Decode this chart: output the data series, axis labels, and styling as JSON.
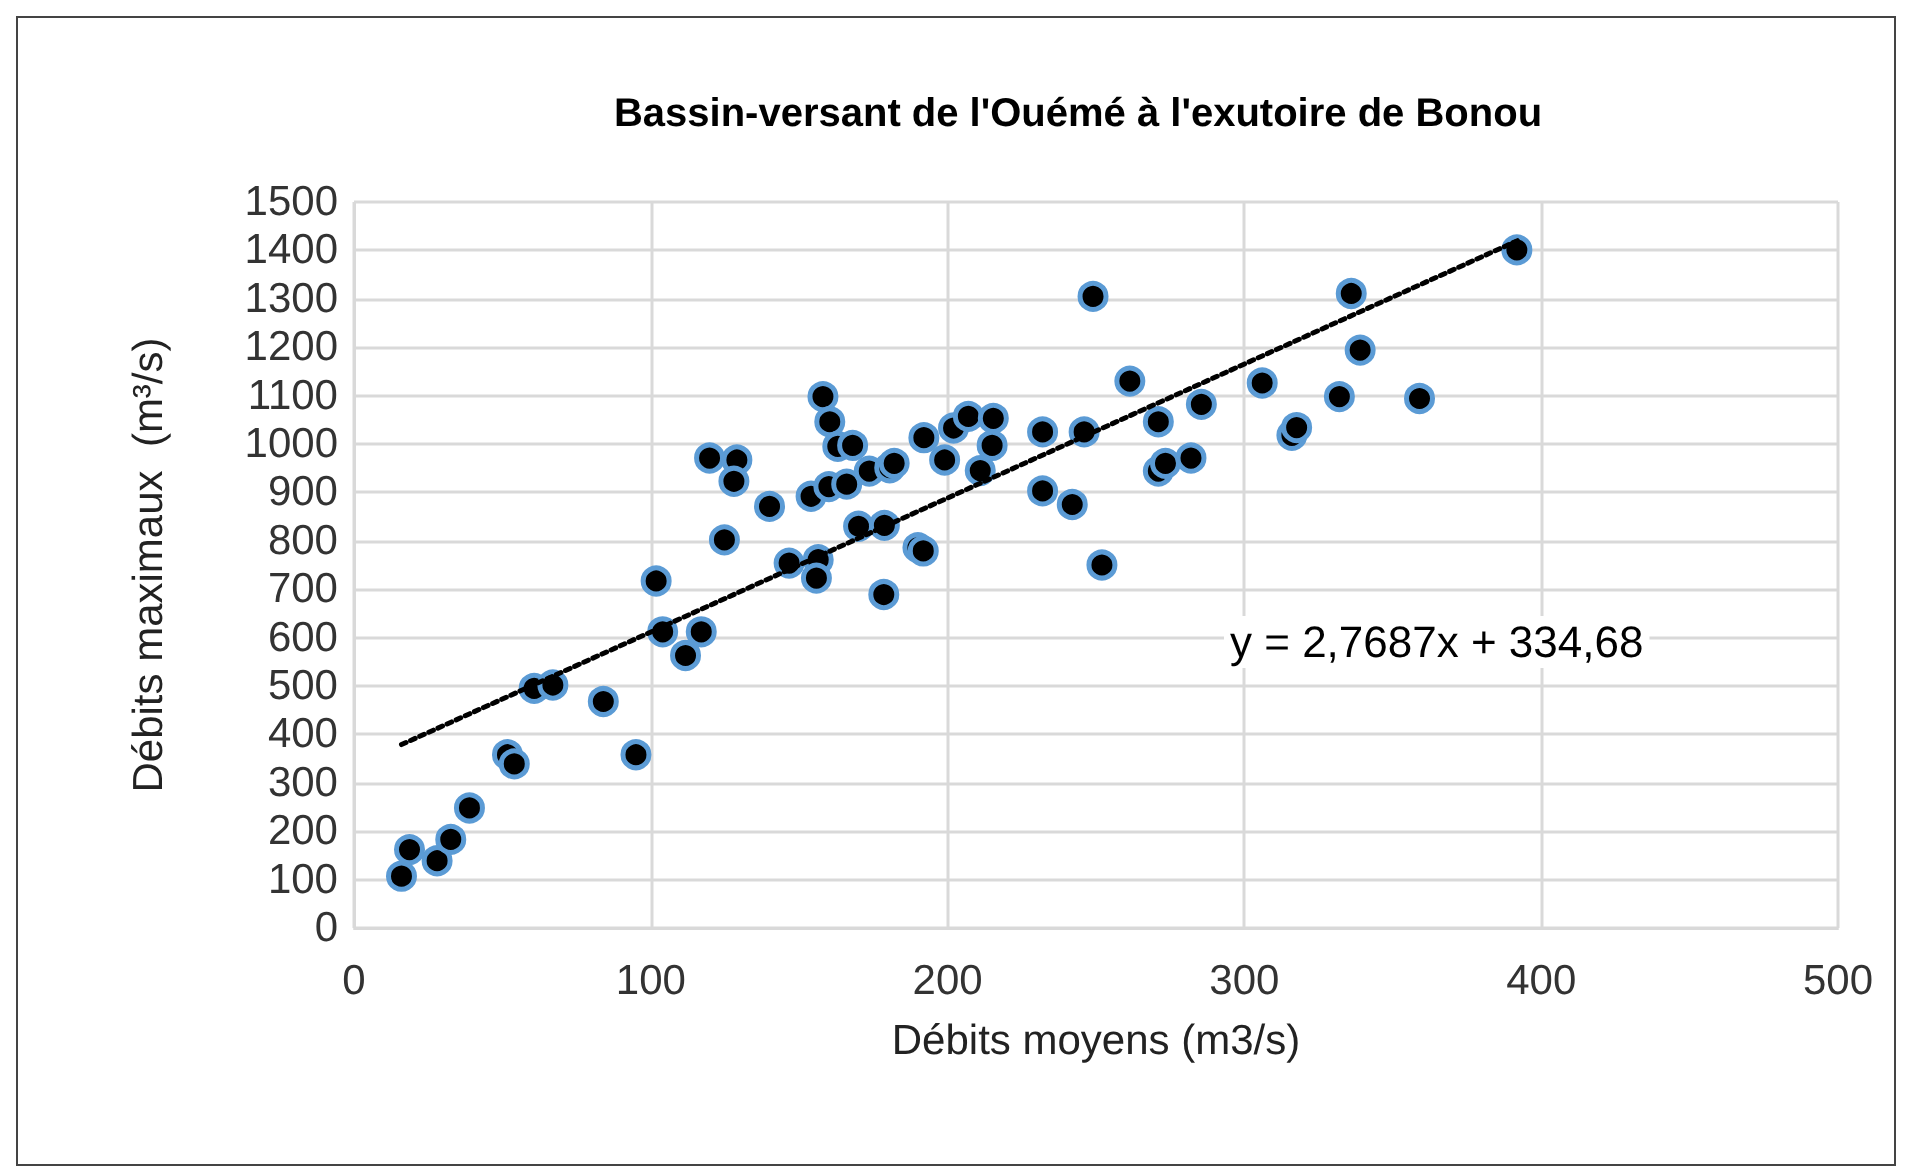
{
  "chart_data": {
    "type": "scatter",
    "title": "Bassin-versant de l'Ouémé à l'exutoire de Bonou",
    "xlabel": "Débits moyens (m3/s)",
    "ylabel": "Débits maximaux  (m³/s)",
    "series": [
      {
        "color": "#000000",
        "marker": "circle",
        "x": [
          16,
          18.7,
          28,
          32.6,
          38.9,
          51.7,
          54,
          60.7,
          67,
          84,
          95,
          101.8,
          104,
          111.7,
          117,
          119.8,
          129,
          128,
          124.8,
          140,
          146.6,
          156.4,
          155.8,
          154,
          160,
          158,
          160.3,
          163,
          168,
          166,
          173.6,
          180.5,
          182,
          170,
          178.7,
          178.5,
          190,
          191.8,
          192,
          199,
          202,
          207,
          215.4,
          215,
          211,
          232,
          232,
          242,
          246,
          249,
          252,
          261.4,
          271,
          285.5,
          271,
          273.4,
          282,
          306,
          316,
          317.6,
          332,
          336,
          339,
          359,
          391.8
        ],
        "values": [
          107,
          162,
          139,
          183,
          248,
          358,
          339,
          495,
          502,
          468,
          358,
          717,
          612,
          563,
          612,
          971,
          967,
          923,
          802,
          871,
          754,
          761,
          723,
          892,
          912,
          1098,
          1046,
          995,
          997,
          917,
          944,
          951,
          960,
          830,
          832,
          689,
          786,
          779,
          1013,
          967,
          1033,
          1057,
          1053,
          997,
          945,
          1025,
          903,
          875,
          1025,
          1305,
          750,
          1130,
          1046,
          1082,
          944,
          960,
          971,
          1126,
          1018,
          1034,
          1098,
          1311,
          1194,
          1094,
          1401
        ]
      },
      {
        "type": "line",
        "color": "#000000",
        "marker": "none",
        "line_style": "dotted",
        "x": [
          16,
          392
        ],
        "values": [
          379,
          1420
        ]
      }
    ],
    "xlim": [
      0,
      500
    ],
    "xticks": [
      0,
      100,
      200,
      300,
      400,
      500
    ],
    "ylim": [
      0,
      1500
    ],
    "yticks": [
      0,
      100,
      200,
      300,
      400,
      500,
      600,
      700,
      800,
      900,
      1000,
      1100,
      1200,
      1300,
      1400,
      1500
    ],
    "grid": true,
    "annotations": [
      "y = 2,7687x + 334,68"
    ]
  }
}
